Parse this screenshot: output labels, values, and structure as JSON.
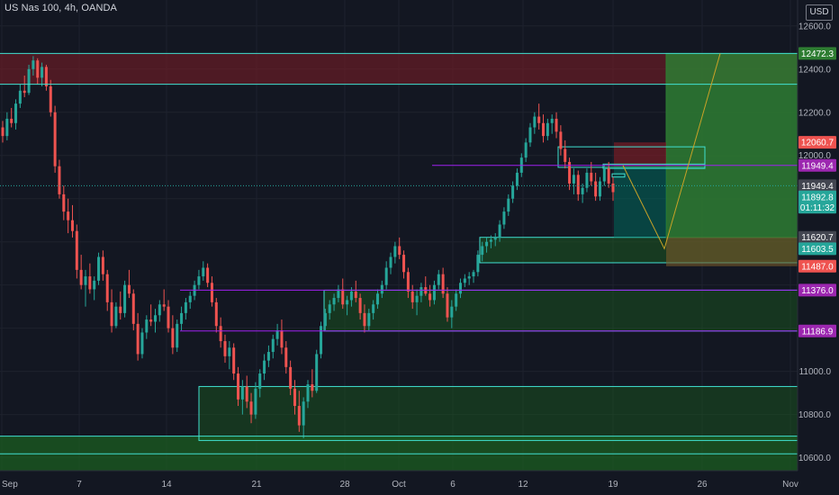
{
  "header": {
    "title": "US Nas 100, 4h, OANDA",
    "currency": "USD"
  },
  "colors": {
    "background": "#131722",
    "up": "#26a69a",
    "down": "#ef5350",
    "zone_green": "#1b5e20",
    "zone_red": "#7f1d26",
    "cyan": "#40e0d0",
    "purple": "#a020f0",
    "target_green": "#2e7d32",
    "axis_text": "#b2b5be"
  },
  "chart_data": {
    "type": "candlestick",
    "symbol": "US Nas 100",
    "interval": "4h",
    "source": "OANDA",
    "ylim": [
      10540,
      12720
    ],
    "y_ticks": [
      10600,
      10800,
      11000,
      11200,
      11400,
      11600,
      11800,
      12000,
      12200,
      12400,
      12600
    ],
    "y_tick_labels": [
      "10600.0",
      "10800.0",
      "11000.0",
      "",
      "",
      "",
      "",
      "12000.0",
      "12200.0",
      "12400.0",
      "12600.0"
    ],
    "x_labels": [
      "Sep",
      "7",
      "14",
      "21",
      "28",
      "Oct",
      "6",
      "12",
      "19",
      "26",
      "Nov"
    ],
    "price_tags": [
      {
        "label": "12472.3",
        "value": 12472.3,
        "color": "#2e7d32"
      },
      {
        "label": "12060.7",
        "value": 12060.7,
        "color": "#ef5350"
      },
      {
        "label": "11949.4",
        "value": 11954,
        "color": "#9c27b0"
      },
      {
        "label": "11949.4",
        "value": 11860,
        "color": "#434651"
      },
      {
        "label": "11892.8",
        "value": 11808,
        "color": "#26a69a"
      },
      {
        "label": "01:11:32",
        "value": 11760,
        "color": "#26a69a"
      },
      {
        "label": "11620.7",
        "value": 11620.7,
        "color": "#434651"
      },
      {
        "label": "11603.5",
        "value": 11568,
        "color": "#26a69a"
      },
      {
        "label": "11487.0",
        "value": 11487,
        "color": "#ef5350"
      },
      {
        "label": "11376.0",
        "value": 11376,
        "color": "#9c27b0"
      },
      {
        "label": "11186.9",
        "value": 11186.9,
        "color": "#9c27b0"
      }
    ],
    "candles": [
      [
        12130,
        12160,
        12060,
        12090
      ],
      [
        12090,
        12200,
        12070,
        12170
      ],
      [
        12170,
        12220,
        12130,
        12150
      ],
      [
        12150,
        12260,
        12120,
        12240
      ],
      [
        12240,
        12330,
        12220,
        12300
      ],
      [
        12300,
        12370,
        12270,
        12290
      ],
      [
        12290,
        12420,
        12280,
        12400
      ],
      [
        12400,
        12460,
        12370,
        12440
      ],
      [
        12440,
        12450,
        12330,
        12360
      ],
      [
        12360,
        12430,
        12320,
        12410
      ],
      [
        12410,
        12420,
        12300,
        12320
      ],
      [
        12320,
        12350,
        12180,
        12200
      ],
      [
        12200,
        12230,
        11920,
        11950
      ],
      [
        11950,
        11980,
        11800,
        11820
      ],
      [
        11820,
        11860,
        11700,
        11740
      ],
      [
        11740,
        11800,
        11640,
        11700
      ],
      [
        11700,
        11770,
        11620,
        11650
      ],
      [
        11650,
        11680,
        11430,
        11470
      ],
      [
        11470,
        11540,
        11380,
        11400
      ],
      [
        11400,
        11470,
        11300,
        11440
      ],
      [
        11440,
        11500,
        11360,
        11380
      ],
      [
        11380,
        11440,
        11330,
        11420
      ],
      [
        11420,
        11550,
        11400,
        11530
      ],
      [
        11530,
        11560,
        11420,
        11450
      ],
      [
        11450,
        11470,
        11280,
        11320
      ],
      [
        11320,
        11380,
        11180,
        11210
      ],
      [
        11210,
        11320,
        11200,
        11300
      ],
      [
        11300,
        11370,
        11240,
        11270
      ],
      [
        11270,
        11420,
        11250,
        11400
      ],
      [
        11400,
        11470,
        11340,
        11360
      ],
      [
        11360,
        11380,
        11190,
        11220
      ],
      [
        11220,
        11270,
        11050,
        11080
      ],
      [
        11080,
        11200,
        11060,
        11180
      ],
      [
        11180,
        11260,
        11150,
        11240
      ],
      [
        11240,
        11310,
        11210,
        11230
      ],
      [
        11230,
        11290,
        11180,
        11260
      ],
      [
        11260,
        11330,
        11230,
        11310
      ],
      [
        11310,
        11380,
        11280,
        11300
      ],
      [
        11300,
        11330,
        11180,
        11200
      ],
      [
        11200,
        11260,
        11080,
        11110
      ],
      [
        11110,
        11240,
        11090,
        11220
      ],
      [
        11220,
        11300,
        11190,
        11270
      ],
      [
        11270,
        11340,
        11240,
        11320
      ],
      [
        11320,
        11370,
        11290,
        11350
      ],
      [
        11350,
        11420,
        11330,
        11400
      ],
      [
        11400,
        11470,
        11380,
        11440
      ],
      [
        11440,
        11510,
        11420,
        11480
      ],
      [
        11480,
        11500,
        11390,
        11410
      ],
      [
        11410,
        11440,
        11300,
        11320
      ],
      [
        11320,
        11340,
        11180,
        11210
      ],
      [
        11210,
        11250,
        11110,
        11140
      ],
      [
        11140,
        11170,
        11040,
        11070
      ],
      [
        11070,
        11140,
        11010,
        11110
      ],
      [
        11110,
        11130,
        10960,
        10990
      ],
      [
        10990,
        11020,
        10840,
        10870
      ],
      [
        10870,
        10960,
        10800,
        10930
      ],
      [
        10930,
        10980,
        10830,
        10860
      ],
      [
        10860,
        10900,
        10760,
        10800
      ],
      [
        10800,
        10950,
        10780,
        10920
      ],
      [
        10920,
        11010,
        10880,
        10990
      ],
      [
        10990,
        11080,
        10960,
        11050
      ],
      [
        11050,
        11120,
        11020,
        11090
      ],
      [
        11090,
        11170,
        11060,
        11150
      ],
      [
        11150,
        11220,
        11120,
        11190
      ],
      [
        11190,
        11240,
        11080,
        11110
      ],
      [
        11110,
        11140,
        10990,
        11020
      ],
      [
        11020,
        11050,
        10890,
        10920
      ],
      [
        10920,
        10960,
        10800,
        10840
      ],
      [
        10840,
        10910,
        10720,
        10750
      ],
      [
        10750,
        10880,
        10690,
        10860
      ],
      [
        10860,
        10960,
        10830,
        10940
      ],
      [
        10940,
        11010,
        10880,
        10910
      ],
      [
        10910,
        11100,
        10900,
        11080
      ],
      [
        11080,
        11230,
        11060,
        11210
      ],
      [
        11210,
        11290,
        11190,
        11270
      ],
      [
        11270,
        11330,
        11240,
        11310
      ],
      [
        11310,
        11360,
        11280,
        11340
      ],
      [
        11340,
        11400,
        11320,
        11380
      ],
      [
        11380,
        11430,
        11290,
        11310
      ],
      [
        11310,
        11350,
        11260,
        11330
      ],
      [
        11330,
        11390,
        11300,
        11370
      ],
      [
        11370,
        11420,
        11320,
        11340
      ],
      [
        11340,
        11360,
        11240,
        11270
      ],
      [
        11270,
        11310,
        11180,
        11210
      ],
      [
        11210,
        11290,
        11190,
        11270
      ],
      [
        11270,
        11330,
        11240,
        11310
      ],
      [
        11310,
        11380,
        11290,
        11360
      ],
      [
        11360,
        11420,
        11340,
        11400
      ],
      [
        11400,
        11510,
        11380,
        11480
      ],
      [
        11480,
        11550,
        11450,
        11530
      ],
      [
        11530,
        11600,
        11500,
        11580
      ],
      [
        11580,
        11620,
        11520,
        11540
      ],
      [
        11540,
        11560,
        11430,
        11460
      ],
      [
        11460,
        11480,
        11340,
        11370
      ],
      [
        11370,
        11400,
        11290,
        11320
      ],
      [
        11320,
        11380,
        11260,
        11350
      ],
      [
        11350,
        11410,
        11320,
        11390
      ],
      [
        11390,
        11440,
        11350,
        11360
      ],
      [
        11360,
        11400,
        11300,
        11330
      ],
      [
        11330,
        11420,
        11310,
        11400
      ],
      [
        11400,
        11470,
        11380,
        11450
      ],
      [
        11450,
        11480,
        11340,
        11360
      ],
      [
        11360,
        11390,
        11230,
        11250
      ],
      [
        11250,
        11330,
        11200,
        11300
      ],
      [
        11300,
        11380,
        11280,
        11360
      ],
      [
        11360,
        11430,
        11340,
        11410
      ],
      [
        11410,
        11450,
        11390,
        11430
      ],
      [
        11430,
        11460,
        11400,
        11440
      ],
      [
        11440,
        11470,
        11410,
        11460
      ],
      [
        11460,
        11560,
        11440,
        11540
      ],
      [
        11540,
        11600,
        11510,
        11580
      ],
      [
        11580,
        11620,
        11550,
        11600
      ],
      [
        11600,
        11630,
        11570,
        11610
      ],
      [
        11610,
        11640,
        11580,
        11620
      ],
      [
        11620,
        11700,
        11600,
        11680
      ],
      [
        11680,
        11760,
        11660,
        11740
      ],
      [
        11740,
        11820,
        11720,
        11800
      ],
      [
        11800,
        11880,
        11780,
        11860
      ],
      [
        11860,
        11940,
        11840,
        11920
      ],
      [
        11920,
        12010,
        11900,
        11990
      ],
      [
        11990,
        12080,
        11970,
        12060
      ],
      [
        12060,
        12150,
        12040,
        12130
      ],
      [
        12130,
        12200,
        12100,
        12180
      ],
      [
        12180,
        12240,
        12120,
        12150
      ],
      [
        12150,
        12190,
        12060,
        12090
      ],
      [
        12090,
        12170,
        12070,
        12150
      ],
      [
        12150,
        12190,
        12100,
        12170
      ],
      [
        12170,
        12200,
        12080,
        12110
      ],
      [
        12110,
        12140,
        12000,
        12030
      ],
      [
        12030,
        12070,
        11940,
        11970
      ],
      [
        11970,
        11990,
        11840,
        11870
      ],
      [
        11870,
        11940,
        11820,
        11910
      ],
      [
        11910,
        11930,
        11790,
        11820
      ],
      [
        11820,
        11870,
        11780,
        11850
      ],
      [
        11850,
        11940,
        11830,
        11920
      ],
      [
        11920,
        11970,
        11860,
        11880
      ],
      [
        11880,
        11920,
        11790,
        11810
      ],
      [
        11810,
        11900,
        11790,
        11880
      ],
      [
        11880,
        11960,
        11860,
        11940
      ],
      [
        11940,
        11970,
        11850,
        11870
      ],
      [
        11870,
        11900,
        11790,
        11830
      ]
    ]
  }
}
